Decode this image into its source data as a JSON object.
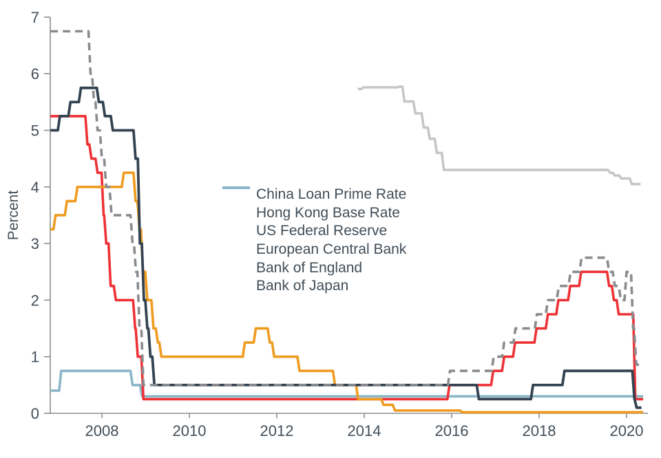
{
  "chart_data": {
    "type": "line",
    "title": "",
    "xlabel": "",
    "ylabel": "Percent",
    "ylim": [
      0,
      7
    ],
    "xlim": [
      2006.82,
      2020.45
    ],
    "grid": false,
    "legend_position": "inside-center-left",
    "yticks": [
      0,
      1,
      2,
      3,
      4,
      5,
      6,
      7
    ],
    "xticks": [
      2008,
      2010,
      2012,
      2014,
      2016,
      2018,
      2020
    ],
    "axis_color": "#8a8e91",
    "text_color": "#424e58",
    "draw_order": [
      0,
      5,
      2,
      3,
      4,
      1
    ],
    "series": [
      {
        "name": "China Loan Prime Rate",
        "color": "#c5c6c8",
        "dash": null,
        "width": 3.6,
        "end": 2020.32,
        "points": [
          [
            2013.85,
            5.73
          ],
          [
            2013.98,
            5.76
          ],
          [
            2014.8,
            5.77
          ],
          [
            2014.92,
            5.51
          ],
          [
            2015.17,
            5.3
          ],
          [
            2015.36,
            5.05
          ],
          [
            2015.5,
            4.85
          ],
          [
            2015.66,
            4.6
          ],
          [
            2015.82,
            4.3
          ],
          [
            2019.62,
            4.25
          ],
          [
            2019.73,
            4.2
          ],
          [
            2019.88,
            4.15
          ],
          [
            2020.12,
            4.05
          ]
        ]
      },
      {
        "name": "Hong Kong Base Rate",
        "color": "#898b8e",
        "dash": [
          11,
          7
        ],
        "width": 3.6,
        "end": 2020.3,
        "points": [
          [
            2006.82,
            6.75
          ],
          [
            2007.74,
            6.0
          ],
          [
            2007.82,
            5.5
          ],
          [
            2007.9,
            5.0
          ],
          [
            2008.0,
            4.5
          ],
          [
            2008.1,
            4.0
          ],
          [
            2008.22,
            3.5
          ],
          [
            2008.7,
            3.0
          ],
          [
            2008.78,
            2.5
          ],
          [
            2008.86,
            1.5
          ],
          [
            2008.95,
            0.5
          ],
          [
            2015.96,
            0.75
          ],
          [
            2016.96,
            1.0
          ],
          [
            2017.2,
            1.25
          ],
          [
            2017.46,
            1.5
          ],
          [
            2017.95,
            1.75
          ],
          [
            2018.2,
            2.0
          ],
          [
            2018.45,
            2.25
          ],
          [
            2018.72,
            2.5
          ],
          [
            2018.97,
            2.75
          ],
          [
            2019.6,
            2.5
          ],
          [
            2019.73,
            2.25
          ],
          [
            2019.87,
            2.0
          ],
          [
            2020.0,
            2.5
          ],
          [
            2020.15,
            1.5
          ],
          [
            2020.22,
            0.86
          ]
        ]
      },
      {
        "name": "US Federal Reserve",
        "color": "#ee3135",
        "dash": null,
        "width": 3.6,
        "end": 2020.38,
        "points": [
          [
            2006.82,
            5.25
          ],
          [
            2007.67,
            4.75
          ],
          [
            2007.76,
            4.5
          ],
          [
            2007.9,
            4.25
          ],
          [
            2008.04,
            3.5
          ],
          [
            2008.1,
            3.0
          ],
          [
            2008.2,
            2.25
          ],
          [
            2008.32,
            2.0
          ],
          [
            2008.76,
            1.5
          ],
          [
            2008.82,
            1.0
          ],
          [
            2008.95,
            0.25
          ],
          [
            2015.95,
            0.5
          ],
          [
            2016.95,
            0.75
          ],
          [
            2017.2,
            1.0
          ],
          [
            2017.45,
            1.25
          ],
          [
            2017.94,
            1.5
          ],
          [
            2018.2,
            1.75
          ],
          [
            2018.44,
            2.0
          ],
          [
            2018.71,
            2.25
          ],
          [
            2018.96,
            2.5
          ],
          [
            2019.6,
            2.25
          ],
          [
            2019.71,
            2.0
          ],
          [
            2019.82,
            1.75
          ],
          [
            2020.2,
            0.25
          ]
        ]
      },
      {
        "name": "European Central Bank",
        "color": "#ef9b20",
        "dash": null,
        "width": 3.6,
        "end": 2020.38,
        "points": [
          [
            2006.82,
            3.25
          ],
          [
            2006.94,
            3.5
          ],
          [
            2007.2,
            3.75
          ],
          [
            2007.44,
            4.0
          ],
          [
            2008.5,
            4.25
          ],
          [
            2008.77,
            3.75
          ],
          [
            2008.86,
            3.25
          ],
          [
            2008.94,
            2.5
          ],
          [
            2009.04,
            2.0
          ],
          [
            2009.18,
            1.5
          ],
          [
            2009.28,
            1.25
          ],
          [
            2009.36,
            1.0
          ],
          [
            2011.27,
            1.25
          ],
          [
            2011.52,
            1.5
          ],
          [
            2011.84,
            1.25
          ],
          [
            2011.94,
            1.0
          ],
          [
            2012.52,
            0.75
          ],
          [
            2013.33,
            0.5
          ],
          [
            2013.86,
            0.25
          ],
          [
            2014.44,
            0.15
          ],
          [
            2014.7,
            0.05
          ],
          [
            2016.24,
            0.02
          ]
        ]
      },
      {
        "name": "Bank of England",
        "color": "#344351",
        "dash": null,
        "width": 3.8,
        "end": 2020.34,
        "points": [
          [
            2006.82,
            5.0
          ],
          [
            2007.04,
            5.25
          ],
          [
            2007.28,
            5.5
          ],
          [
            2007.52,
            5.75
          ],
          [
            2007.93,
            5.5
          ],
          [
            2008.07,
            5.25
          ],
          [
            2008.25,
            5.0
          ],
          [
            2008.77,
            4.5
          ],
          [
            2008.87,
            3.0
          ],
          [
            2008.96,
            2.0
          ],
          [
            2009.04,
            1.5
          ],
          [
            2009.11,
            1.0
          ],
          [
            2009.2,
            0.5
          ],
          [
            2016.62,
            0.25
          ],
          [
            2017.86,
            0.5
          ],
          [
            2018.58,
            0.75
          ],
          [
            2020.18,
            0.25
          ],
          [
            2020.23,
            0.1
          ]
        ]
      },
      {
        "name": "Bank of Japan",
        "color": "#89b6c8",
        "dash": null,
        "width": 3.6,
        "end": 2020.38,
        "points": [
          [
            2006.82,
            0.4
          ],
          [
            2007.07,
            0.75
          ],
          [
            2008.7,
            0.5
          ],
          [
            2008.92,
            0.3
          ]
        ]
      }
    ]
  }
}
